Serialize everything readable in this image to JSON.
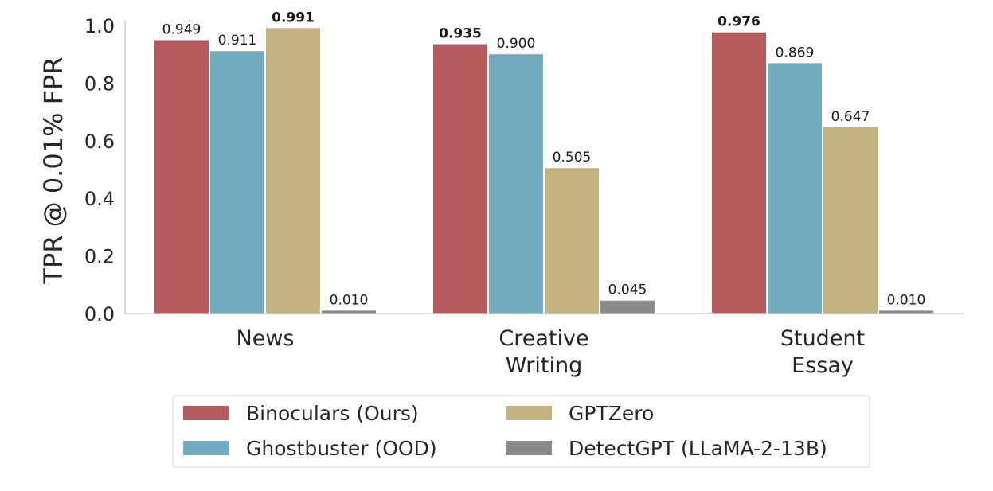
{
  "chart_data": {
    "type": "bar",
    "categories": [
      [
        "News"
      ],
      [
        "Creative",
        "Writing"
      ],
      [
        "Student",
        "Essay"
      ]
    ],
    "ylabel": "TPR @ 0.01% FPR",
    "ylim": [
      0,
      1.0
    ],
    "yticks": [
      "0.0",
      "0.2",
      "0.4",
      "0.6",
      "0.8",
      "1.0"
    ],
    "ytick_values": [
      0.0,
      0.2,
      0.4,
      0.6,
      0.8,
      1.0
    ],
    "grid": false,
    "legend_position": "bottom-center",
    "series": [
      {
        "name": "Binoculars (Ours)",
        "color": "#b55a5d",
        "values": [
          0.949,
          0.935,
          0.976
        ],
        "labels": [
          "0.949",
          "0.935",
          "0.976"
        ]
      },
      {
        "name": "Ghostbuster (OOD)",
        "color": "#73acbf",
        "values": [
          0.911,
          0.9,
          0.869
        ],
        "labels": [
          "0.911",
          "0.900",
          "0.869"
        ]
      },
      {
        "name": "GPTZero",
        "color": "#c1b27f",
        "values": [
          0.991,
          0.505,
          0.647
        ],
        "labels": [
          "0.991",
          "0.505",
          "0.647"
        ]
      },
      {
        "name": "DetectGPT (LLaMA-2-13B)",
        "color": "#8a8a8a",
        "values": [
          0.01,
          0.045,
          0.01
        ],
        "labels": [
          "0.010",
          "0.045",
          "0.010"
        ]
      }
    ],
    "best_per_category": [
      {
        "series": 2,
        "category": 0
      },
      {
        "series": 0,
        "category": 1
      },
      {
        "series": 0,
        "category": 2
      }
    ]
  }
}
